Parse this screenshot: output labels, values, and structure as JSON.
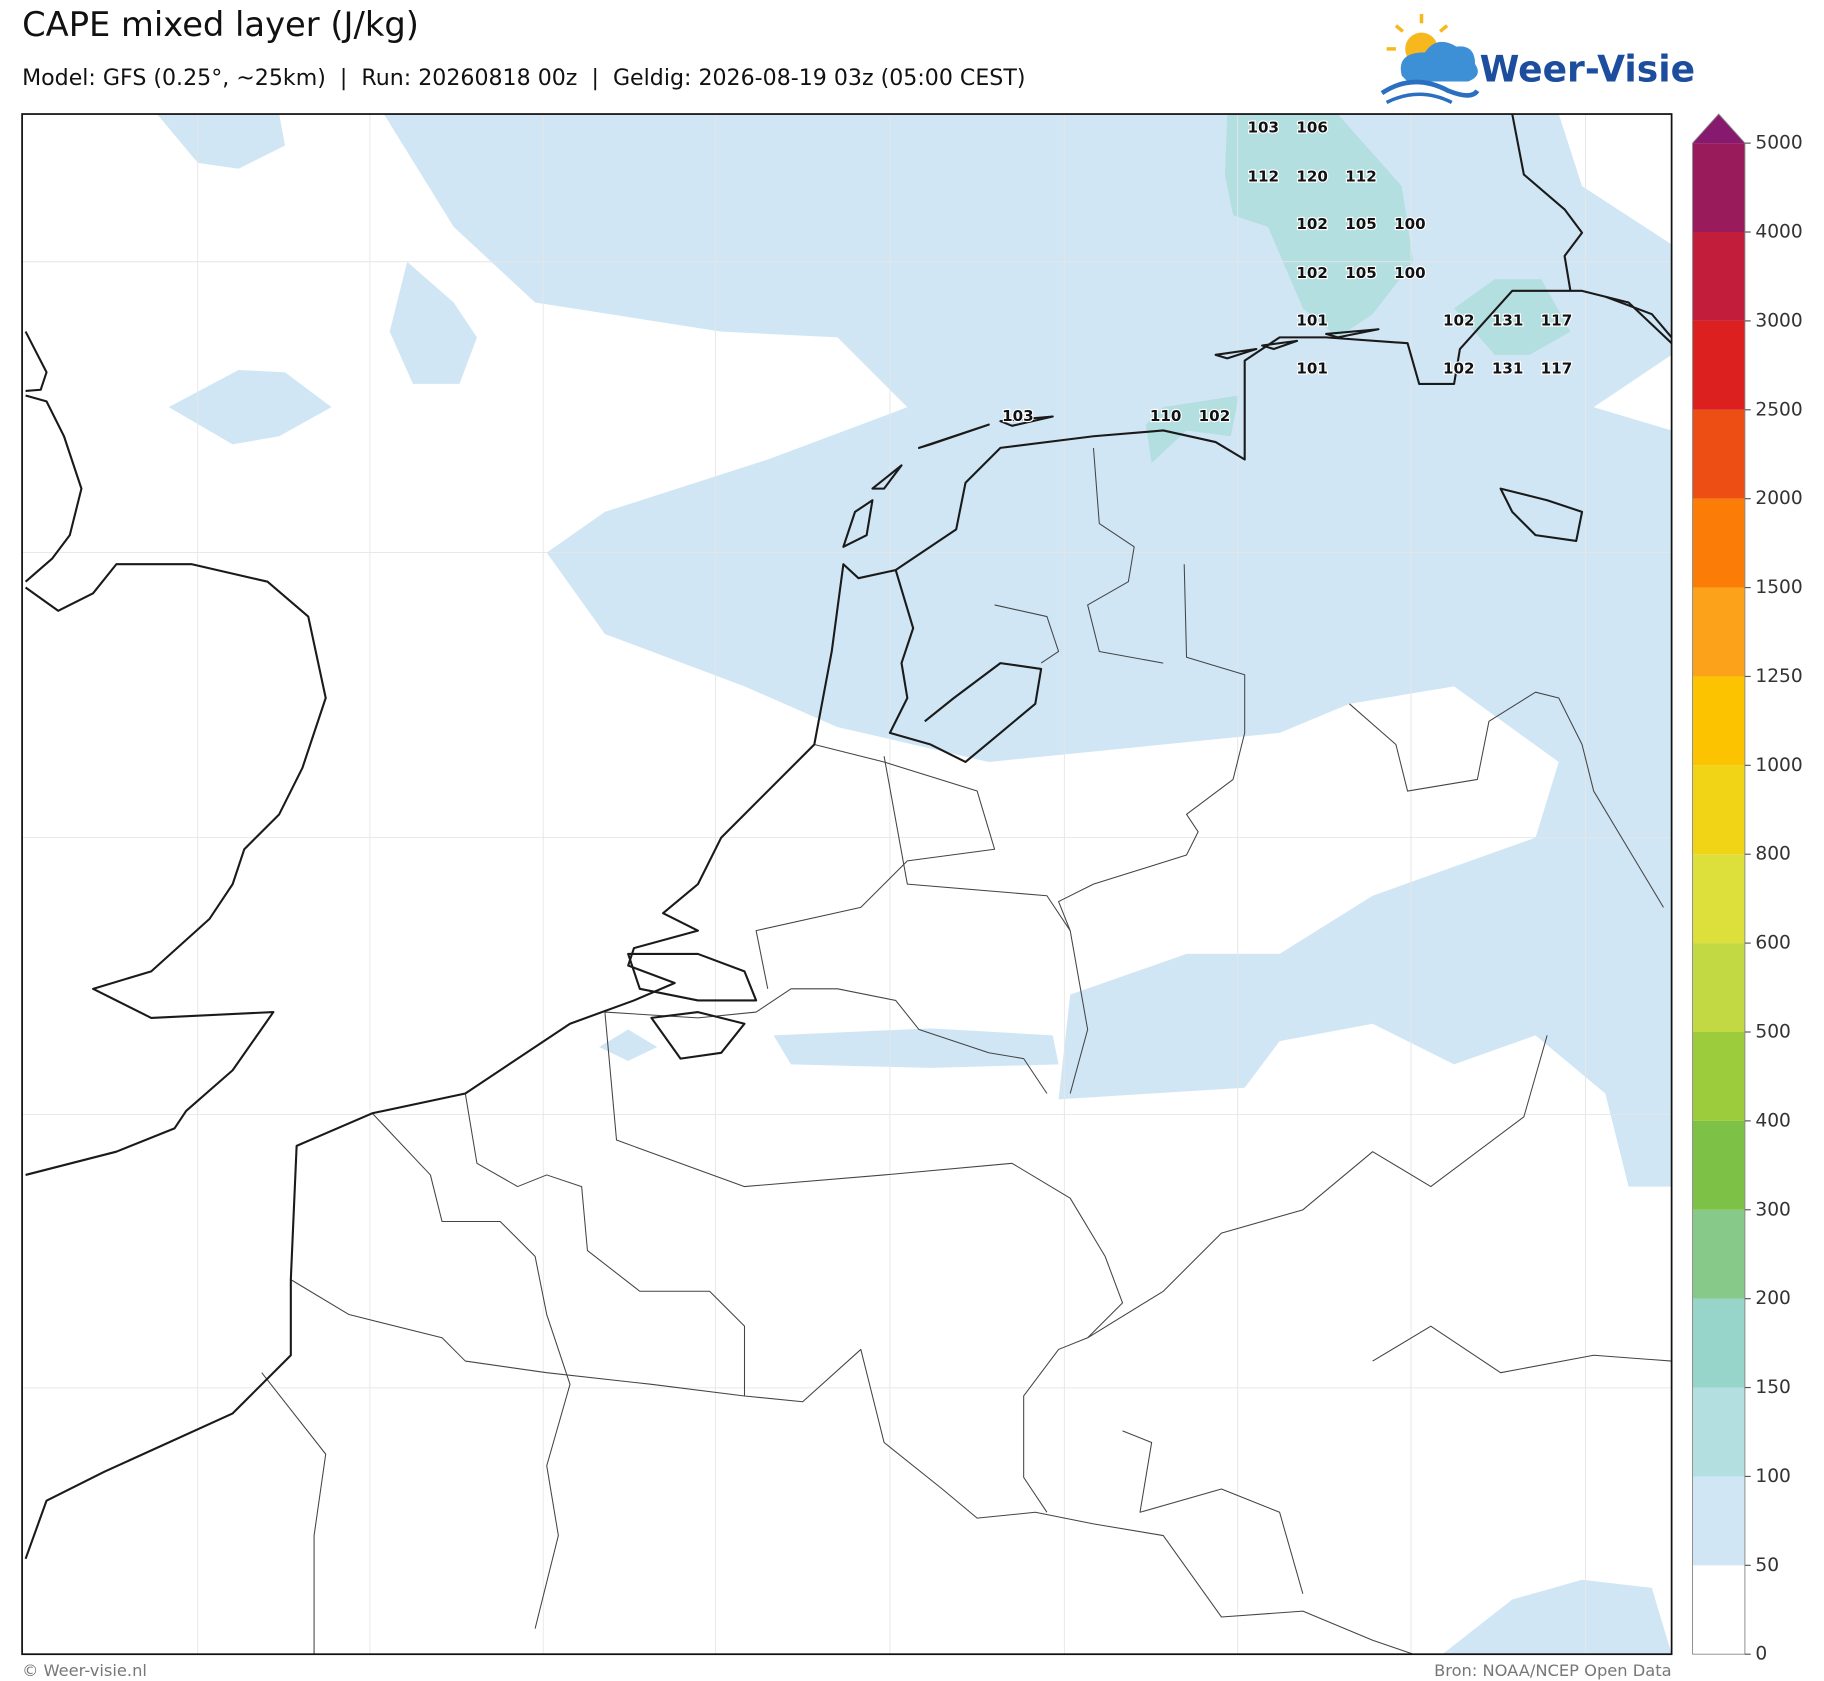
{
  "header": {
    "title": "CAPE mixed layer (J/kg)",
    "subtitle": "Model: GFS (0.25°, ~25km)  |  Run: 20260818 00z  |  Geldig: 2026-08-19 03z (05:00 CEST)"
  },
  "logo": {
    "text": "Weer-Visie"
  },
  "colorbar": {
    "ticks": [
      0,
      50,
      100,
      150,
      200,
      300,
      400,
      500,
      600,
      800,
      1000,
      1250,
      1500,
      2000,
      2500,
      3000,
      4000,
      5000
    ],
    "colors": [
      "#ffffff",
      "#d0e6f5",
      "#b3dfe0",
      "#97d4c9",
      "#86c989",
      "#7dc247",
      "#9ccb3b",
      "#c3d944",
      "#dde03a",
      "#f2d417",
      "#fbc300",
      "#fca21a",
      "#fb7d07",
      "#ec4e13",
      "#dc1f1f",
      "#c21d3b",
      "#9a1b5c"
    ],
    "extend_color": "#871a6e"
  },
  "map": {
    "point_labels": [
      103,
      106,
      112,
      120,
      112,
      102,
      105,
      100,
      102,
      105,
      100,
      101,
      102,
      131,
      117,
      101,
      102,
      131,
      117,
      103,
      110,
      102
    ]
  },
  "footer": {
    "credit": "© Weer-visie.nl",
    "source": "Bron: NOAA/NCEP Open Data"
  }
}
